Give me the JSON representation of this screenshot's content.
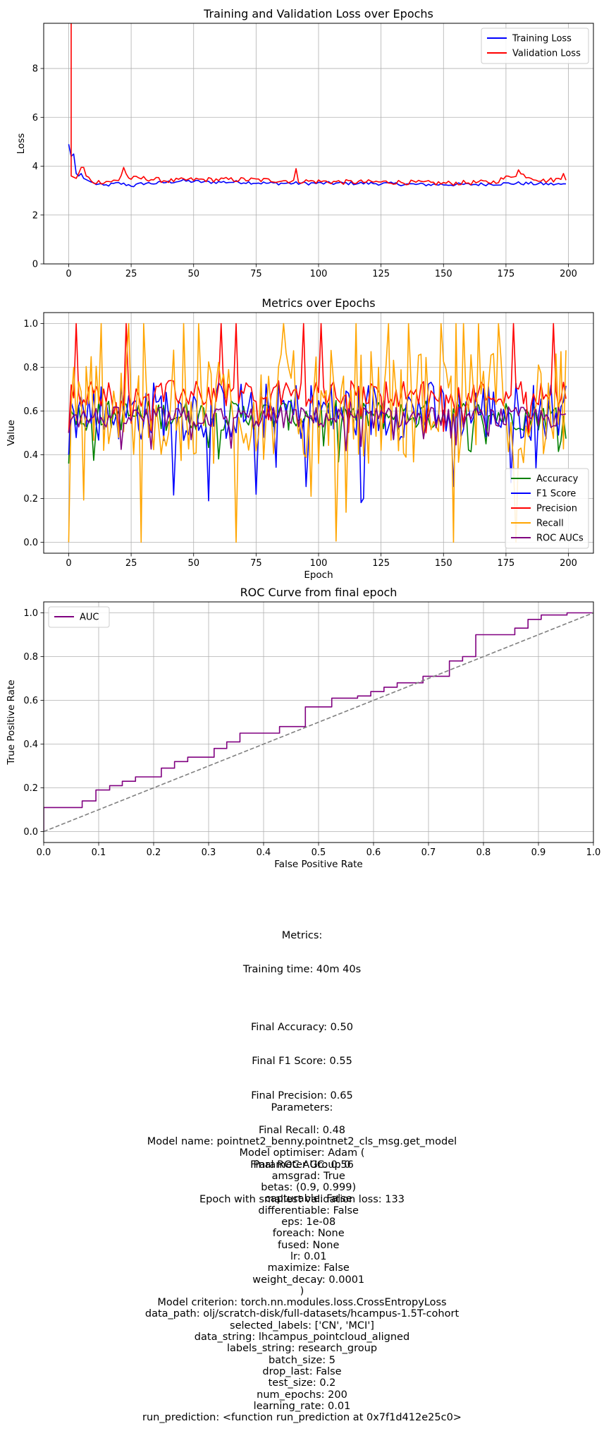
{
  "chart_data": [
    {
      "type": "line",
      "title": "Training and Validation Loss over Epochs",
      "xlabel": "",
      "ylabel": "Loss",
      "xlim": [
        -10,
        210
      ],
      "ylim": [
        0,
        9.85
      ],
      "xticks": [
        0,
        25,
        50,
        75,
        100,
        125,
        150,
        175,
        200
      ],
      "yticks": [
        0,
        2,
        4,
        6,
        8
      ],
      "grid": true,
      "legend": "top-right",
      "series": [
        {
          "name": "Training Loss",
          "color": "#0000ff",
          "x_start": 0,
          "x_step": 1,
          "anchors": [
            [
              0,
              4.9
            ],
            [
              1,
              4.4
            ],
            [
              2,
              4.5
            ],
            [
              3,
              3.7
            ],
            [
              4,
              3.6
            ],
            [
              5,
              3.7
            ],
            [
              6,
              3.5
            ],
            [
              7,
              3.45
            ],
            [
              8,
              3.4
            ],
            [
              9,
              3.35
            ],
            [
              10,
              3.3
            ],
            [
              14,
              3.2
            ],
            [
              20,
              3.3
            ],
            [
              26,
              3.2
            ],
            [
              30,
              3.3
            ],
            [
              35,
              3.3
            ],
            [
              45,
              3.4
            ],
            [
              55,
              3.35
            ],
            [
              70,
              3.35
            ],
            [
              80,
              3.3
            ],
            [
              100,
              3.3
            ],
            [
              120,
              3.3
            ],
            [
              140,
              3.25
            ],
            [
              160,
              3.25
            ],
            [
              180,
              3.3
            ],
            [
              199,
              3.25
            ]
          ],
          "noise": 0.07
        },
        {
          "name": "Validation Loss",
          "color": "#ff0000",
          "x_start": 0,
          "x_step": 1,
          "anchors": [
            [
              0,
              10.5
            ],
            [
              1,
              10.5
            ],
            [
              1.1,
              3.6
            ],
            [
              2,
              3.55
            ],
            [
              3,
              3.5
            ],
            [
              4,
              3.7
            ],
            [
              5,
              3.95
            ],
            [
              6,
              3.95
            ],
            [
              7,
              3.6
            ],
            [
              8,
              3.55
            ],
            [
              9,
              3.4
            ],
            [
              10,
              3.35
            ],
            [
              20,
              3.4
            ],
            [
              22,
              3.9
            ],
            [
              24,
              3.5
            ],
            [
              30,
              3.5
            ],
            [
              40,
              3.4
            ],
            [
              50,
              3.45
            ],
            [
              70,
              3.45
            ],
            [
              90,
              3.4
            ],
            [
              110,
              3.35
            ],
            [
              130,
              3.35
            ],
            [
              150,
              3.3
            ],
            [
              170,
              3.35
            ],
            [
              180,
              3.7
            ],
            [
              185,
              3.55
            ],
            [
              190,
              3.4
            ],
            [
              199,
              3.5
            ]
          ],
          "noise": 0.1,
          "spikes": [
            [
              22,
              3.95
            ],
            [
              91,
              3.9
            ],
            [
              180,
              3.85
            ],
            [
              198,
              3.7
            ]
          ]
        }
      ]
    },
    {
      "type": "line",
      "title": "Metrics over Epochs",
      "xlabel": "Epoch",
      "ylabel": "Value",
      "xlim": [
        -10,
        210
      ],
      "ylim": [
        -0.05,
        1.05
      ],
      "xticks": [
        0,
        25,
        50,
        75,
        100,
        125,
        150,
        175,
        200
      ],
      "yticks": [
        0.0,
        0.2,
        0.4,
        0.6,
        0.8,
        1.0
      ],
      "grid": true,
      "legend": "bottom-right",
      "series": [
        {
          "name": "Accuracy",
          "color": "#008000",
          "first": [
            0.36,
            0.6,
            0.58
          ],
          "center": 0.58,
          "spread": 0.07
        },
        {
          "name": "F1 Score",
          "color": "#0000ff",
          "first": [
            0.4,
            0.64,
            0.6
          ],
          "center": 0.6,
          "spread": 0.14
        },
        {
          "name": "Precision",
          "color": "#ff0000",
          "first": [
            0.5,
            0.72,
            0.66
          ],
          "center": 0.68,
          "spread": 0.06
        },
        {
          "name": "Recall",
          "color": "#ffa500",
          "first": [
            0.0,
            0.62,
            0.8
          ],
          "center": 0.62,
          "spread": 0.26
        },
        {
          "name": "ROC AUCs",
          "color": "#800080",
          "first": [
            0.5,
            0.56,
            0.58
          ],
          "center": 0.57,
          "spread": 0.05
        }
      ]
    },
    {
      "type": "line",
      "title": "ROC Curve from final epoch",
      "xlabel": "False Positive Rate",
      "ylabel": "True Positive Rate",
      "xlim": [
        0,
        1
      ],
      "ylim": [
        -0.05,
        1.05
      ],
      "xticks": [
        0.0,
        0.1,
        0.2,
        0.3,
        0.4,
        0.5,
        0.6,
        0.7,
        0.8,
        0.9,
        1.0
      ],
      "yticks": [
        0.0,
        0.2,
        0.4,
        0.6,
        0.8,
        1.0
      ],
      "grid": true,
      "legend": "top-left",
      "series": [
        {
          "name": "AUC",
          "color": "#800080",
          "x": [
            0.0,
            0.0,
            0.07,
            0.07,
            0.095,
            0.095,
            0.12,
            0.12,
            0.143,
            0.143,
            0.167,
            0.167,
            0.214,
            0.214,
            0.238,
            0.238,
            0.262,
            0.262,
            0.31,
            0.31,
            0.333,
            0.333,
            0.357,
            0.357,
            0.429,
            0.429,
            0.476,
            0.476,
            0.524,
            0.524,
            0.571,
            0.571,
            0.595,
            0.595,
            0.619,
            0.619,
            0.643,
            0.643,
            0.69,
            0.69,
            0.738,
            0.738,
            0.762,
            0.762,
            0.786,
            0.786,
            0.857,
            0.857,
            0.881,
            0.881,
            0.905,
            0.905,
            0.952,
            0.952,
            1.0
          ],
          "y": [
            0.0,
            0.11,
            0.11,
            0.14,
            0.14,
            0.19,
            0.19,
            0.21,
            0.21,
            0.23,
            0.23,
            0.25,
            0.25,
            0.29,
            0.29,
            0.32,
            0.32,
            0.34,
            0.34,
            0.38,
            0.38,
            0.41,
            0.41,
            0.45,
            0.45,
            0.48,
            0.48,
            0.57,
            0.57,
            0.61,
            0.61,
            0.62,
            0.62,
            0.64,
            0.64,
            0.66,
            0.66,
            0.68,
            0.68,
            0.71,
            0.71,
            0.78,
            0.78,
            0.8,
            0.8,
            0.9,
            0.9,
            0.93,
            0.93,
            0.97,
            0.97,
            0.99,
            0.99,
            1.0,
            1.0
          ]
        },
        {
          "name": "",
          "color": "#808080",
          "dashed": true,
          "x": [
            0,
            1
          ],
          "y": [
            0,
            1
          ]
        }
      ]
    }
  ],
  "text": {
    "metrics_heading": "Metrics:",
    "training_time": "Training time: 40m 40s",
    "final_metrics": [
      "Final Accuracy: 0.50",
      "Final F1 Score: 0.55",
      "Final Precision: 0.65",
      "Final Recall: 0.48",
      "Final ROC AUC: 0.56",
      "Epoch with smallest validation loss: 133"
    ],
    "parameters_heading": "Parameters:",
    "parameters": [
      "Model name: pointnet2_benny.pointnet2_cls_msg.get_model",
      "Model optimiser: Adam (",
      "Parameter Group 0",
      "    amsgrad: True",
      "    betas: (0.9, 0.999)",
      "    capturable: False",
      "    differentiable: False",
      "    eps: 1e-08",
      "    foreach: None",
      "    fused: None",
      "    lr: 0.01",
      "    maximize: False",
      "    weight_decay: 0.0001",
      ")",
      "Model criterion: torch.nn.modules.loss.CrossEntropyLoss",
      "data_path: olj/scratch-disk/full-datasets/hcampus-1.5T-cohort",
      "selected_labels: ['CN', 'MCI']",
      "data_string: lhcampus_pointcloud_aligned",
      "labels_string: research_group",
      "batch_size: 5",
      "drop_last: False",
      "test_size: 0.2",
      "num_epochs: 200",
      "learning_rate: 0.01",
      "run_prediction: <function run_prediction at 0x7f1d412e25c0>"
    ]
  }
}
